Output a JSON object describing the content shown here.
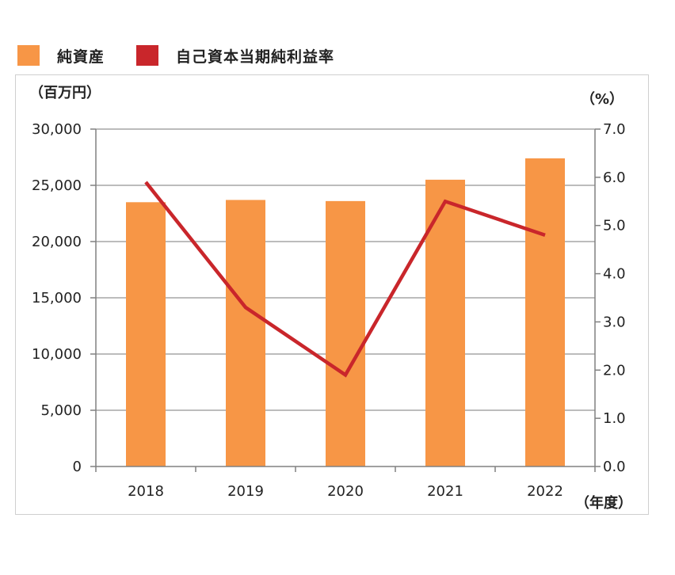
{
  "legend": {
    "bar_label": "純資産",
    "line_label": "自己資本当期純利益率"
  },
  "units": {
    "left": "（百万円）",
    "right": "（%）",
    "x": "（年度）"
  },
  "colors": {
    "bar": "#F79646",
    "line": "#C9262B",
    "grid": "#a6a6a6",
    "axis": "#808080"
  },
  "chart_data": {
    "type": "bar",
    "categories": [
      "2018",
      "2019",
      "2020",
      "2021",
      "2022"
    ],
    "series": [
      {
        "name": "純資産",
        "type": "bar",
        "axis": "left",
        "values": [
          23500,
          23700,
          23600,
          25500,
          27400
        ]
      },
      {
        "name": "自己資本当期純利益率",
        "type": "line",
        "axis": "right",
        "values": [
          5.9,
          3.3,
          1.9,
          5.5,
          4.8
        ]
      }
    ],
    "y_left": {
      "min": 0,
      "max": 30000,
      "step": 5000,
      "tick_labels": [
        "0",
        "5,000",
        "10,000",
        "15,000",
        "20,000",
        "25,000",
        "30,000"
      ]
    },
    "y_right": {
      "min": 0,
      "max": 7,
      "step": 1,
      "tick_labels": [
        "0.0",
        "1.0",
        "2.0",
        "3.0",
        "4.0",
        "5.0",
        "6.0",
        "7.0"
      ]
    },
    "ylabel_left": "（百万円）",
    "ylabel_right": "（%）",
    "xlabel": "（年度）",
    "grid": true,
    "legend_position": "top-left"
  }
}
